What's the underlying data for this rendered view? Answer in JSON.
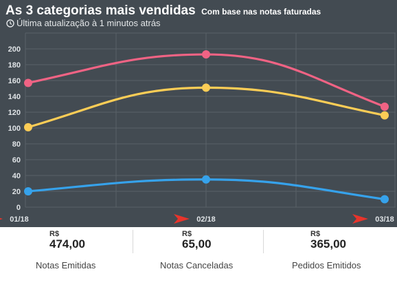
{
  "header": {
    "title": "As 3 categorias mais vendidas",
    "subtitle": "Com base nas notas faturadas",
    "update_text": "Última atualização à 1 minutos atrás"
  },
  "colors": {
    "background": "#434b52",
    "grid": "#5a6268",
    "axis_text": "#dfe3e6",
    "marker": "#e8342b"
  },
  "chart_data": {
    "type": "line",
    "x": [
      "01/18",
      "02/18",
      "03/18"
    ],
    "ylim": [
      0,
      200
    ],
    "yticks": [
      0,
      20,
      40,
      60,
      80,
      100,
      120,
      140,
      160,
      180,
      200
    ],
    "grid": true,
    "smooth": true,
    "series": [
      {
        "color": "#f06384",
        "values": [
          157,
          193,
          127
        ]
      },
      {
        "color": "#fccd56",
        "values": [
          101,
          151,
          116
        ]
      },
      {
        "color": "#36a2eb",
        "values": [
          20,
          35,
          10
        ]
      }
    ]
  },
  "stats": [
    {
      "currency": "R$",
      "value": "474,00",
      "label": "Notas Emitidas"
    },
    {
      "currency": "R$",
      "value": "65,00",
      "label": "Notas Canceladas"
    },
    {
      "currency": "R$",
      "value": "365,00",
      "label": "Pedidos Emitidos"
    }
  ]
}
